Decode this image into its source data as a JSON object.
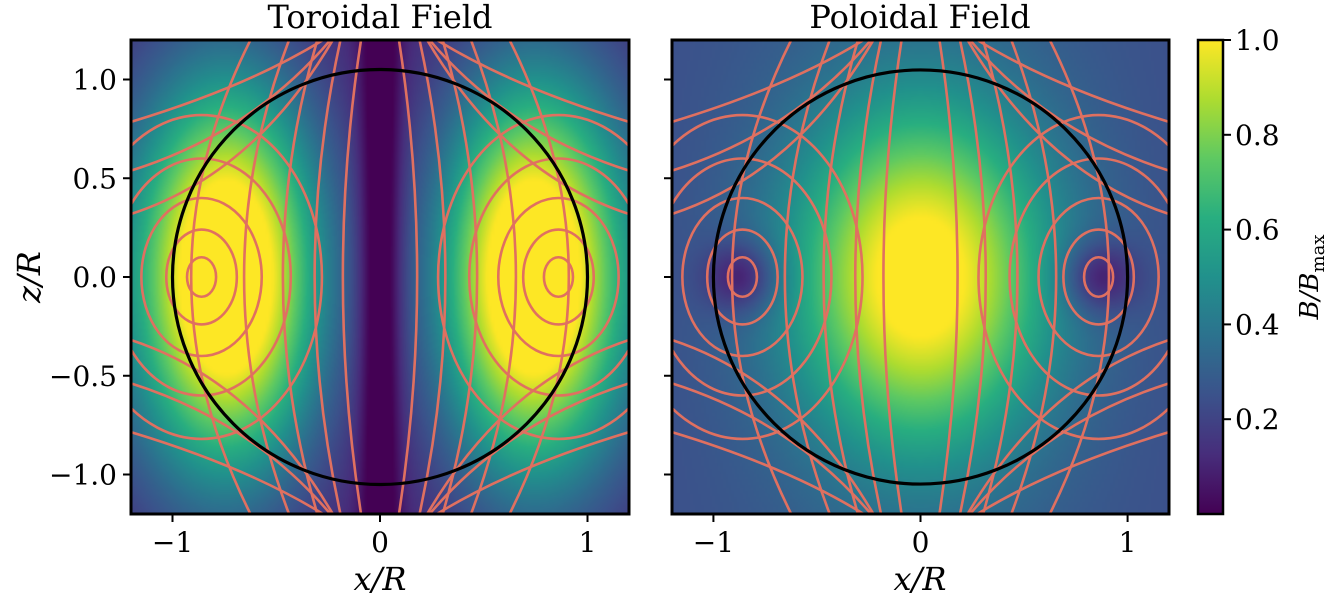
{
  "chart_data": [
    {
      "type": "heatmap",
      "title": "Toroidal Field",
      "xlabel": "x/R",
      "ylabel": "z/R",
      "xlim": [
        -1.2,
        1.2
      ],
      "ylim": [
        -1.2,
        1.2
      ],
      "xticks": [
        -1,
        0,
        1
      ],
      "xtick_labels": [
        "−1",
        "0",
        "1"
      ],
      "yticks": [
        1.0,
        0.5,
        0.0,
        -0.5,
        -1.0
      ],
      "ytick_labels": [
        "1.0",
        "0.5",
        "0.0",
        "−0.5",
        "−1.0"
      ],
      "field": "toroidal",
      "field_peak": {
        "x": [
          -0.72,
          0.72
        ],
        "z": 0.0,
        "value": 1.0
      },
      "field_minimum_along": "x = 0",
      "unit_circle_radius": 1.0,
      "contour_color": "#e07060",
      "boundary_color": "#000000"
    },
    {
      "type": "heatmap",
      "title": "Poloidal Field",
      "xlabel": "x/R",
      "ylabel": "",
      "xlim": [
        -1.2,
        1.2
      ],
      "ylim": [
        -1.2,
        1.2
      ],
      "xticks": [
        -1,
        0,
        1
      ],
      "xtick_labels": [
        "−1",
        "0",
        "1"
      ],
      "yticks": [
        1.0,
        0.5,
        0.0,
        -0.5,
        -1.0
      ],
      "field": "poloidal",
      "field_peak": {
        "x": 0.0,
        "z": 0.0,
        "value": 1.0
      },
      "field_minima": {
        "x": [
          -0.86,
          0.86
        ],
        "z": 0.0
      },
      "unit_circle_radius": 1.0,
      "contour_color": "#e07060",
      "boundary_color": "#000000"
    }
  ],
  "colorbar": {
    "label_main": "B/B",
    "label_sub": "max",
    "range": [
      0.0,
      1.0
    ],
    "ticks": [
      0.2,
      0.4,
      0.6,
      0.8,
      1.0
    ],
    "tick_labels": [
      "0.2",
      "0.4",
      "0.6",
      "0.8",
      "1.0"
    ],
    "colormap": "viridis"
  }
}
